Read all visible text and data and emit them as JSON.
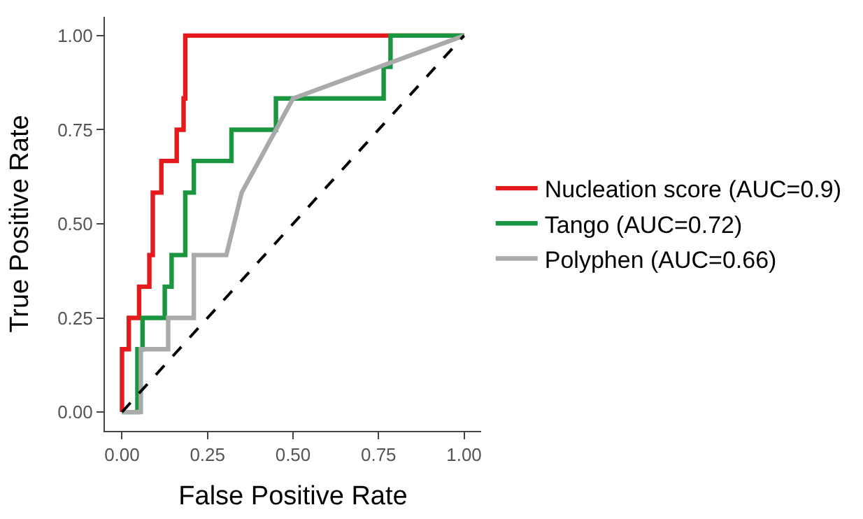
{
  "chart_data": {
    "type": "step",
    "xlabel": "False Positive Rate",
    "ylabel": "True Positive Rate",
    "xlim": [
      -0.05,
      1.05
    ],
    "ylim": [
      -0.05,
      1.05
    ],
    "xticks": [
      {
        "value": 0,
        "label": "0.00"
      },
      {
        "value": 0.25,
        "label": "0.25"
      },
      {
        "value": 0.5,
        "label": "0.50"
      },
      {
        "value": 0.75,
        "label": "0.75"
      },
      {
        "value": 1,
        "label": "1.00"
      }
    ],
    "yticks": [
      {
        "value": 0,
        "label": "0.00"
      },
      {
        "value": 0.25,
        "label": "0.25"
      },
      {
        "value": 0.5,
        "label": "0.50"
      },
      {
        "value": 0.75,
        "label": "0.75"
      },
      {
        "value": 1,
        "label": "1.00"
      }
    ],
    "legend": "right",
    "marker": "none",
    "series": [
      {
        "name": "Nucleation score (AUC=0.9)",
        "color": "#e41a1c",
        "x": [
          0,
          0,
          0.02,
          0.05,
          0.08,
          0.09,
          0.115,
          0.16,
          0.18,
          0.185,
          1
        ],
        "values": [
          0,
          0.167,
          0.25,
          0.333,
          0.417,
          0.583,
          0.667,
          0.75,
          0.833,
          1,
          1
        ]
      },
      {
        "name": "Tango (AUC=0.72)",
        "color": "#1a9641",
        "x": [
          0,
          0.045,
          0.06,
          0.125,
          0.145,
          0.185,
          0.21,
          0.32,
          0.45,
          0.765,
          0.785,
          1
        ],
        "values": [
          0,
          0.167,
          0.25,
          0.333,
          0.417,
          0.583,
          0.667,
          0.75,
          0.833,
          0.917,
          1,
          1
        ]
      },
      {
        "name": "Polyphen (AUC=0.66)",
        "color": "#aaaaaa",
        "type": "line",
        "x": [
          0,
          0.055,
          0.055,
          0.135,
          0.135,
          0.21,
          0.21,
          0.305,
          0.35,
          0.5,
          1
        ],
        "values": [
          0,
          0,
          0.167,
          0.167,
          0.25,
          0.25,
          0.417,
          0.417,
          0.583,
          0.833,
          1
        ]
      },
      {
        "color": "#000000",
        "type": "line",
        "line_style": "dashed",
        "x": [
          0,
          1
        ],
        "values": [
          0,
          1
        ]
      }
    ]
  }
}
